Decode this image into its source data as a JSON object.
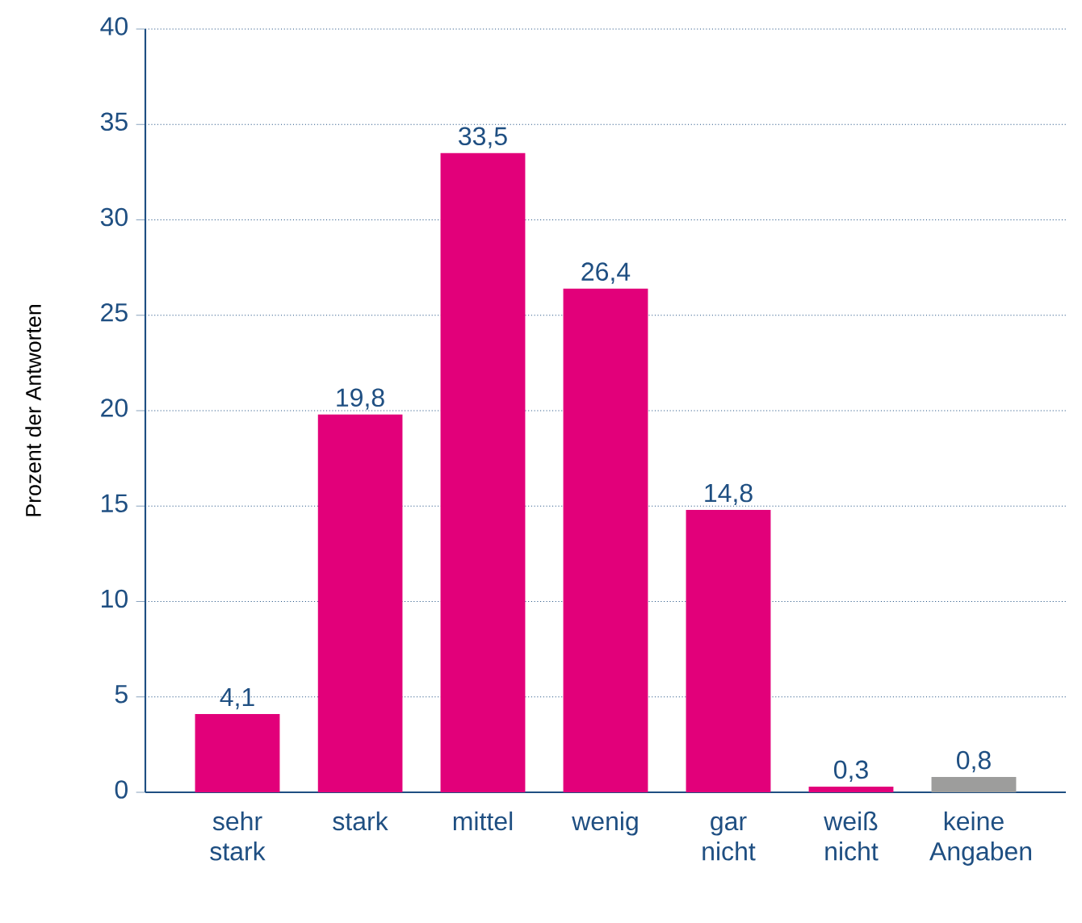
{
  "chart_data": {
    "type": "bar",
    "ylabel": "Prozent der Antworten",
    "categories": [
      "sehr stark",
      "stark",
      "mittel",
      "wenig",
      "gar nicht",
      "weiß nicht",
      "keine Angaben"
    ],
    "values": [
      4.1,
      19.8,
      33.5,
      26.4,
      14.8,
      0.3,
      0.8
    ],
    "colors": [
      "#e2007a",
      "#e2007a",
      "#e2007a",
      "#e2007a",
      "#e2007a",
      "#e2007a",
      "#9d9d9c"
    ],
    "value_labels": [
      "4,1",
      "19,8",
      "33,5",
      "26,4",
      "14,8",
      "0,3",
      "0,8"
    ],
    "ylim": [
      0,
      40
    ],
    "yticks": [
      0,
      5,
      10,
      15,
      20,
      25,
      30,
      35,
      40
    ],
    "grid": "y"
  }
}
